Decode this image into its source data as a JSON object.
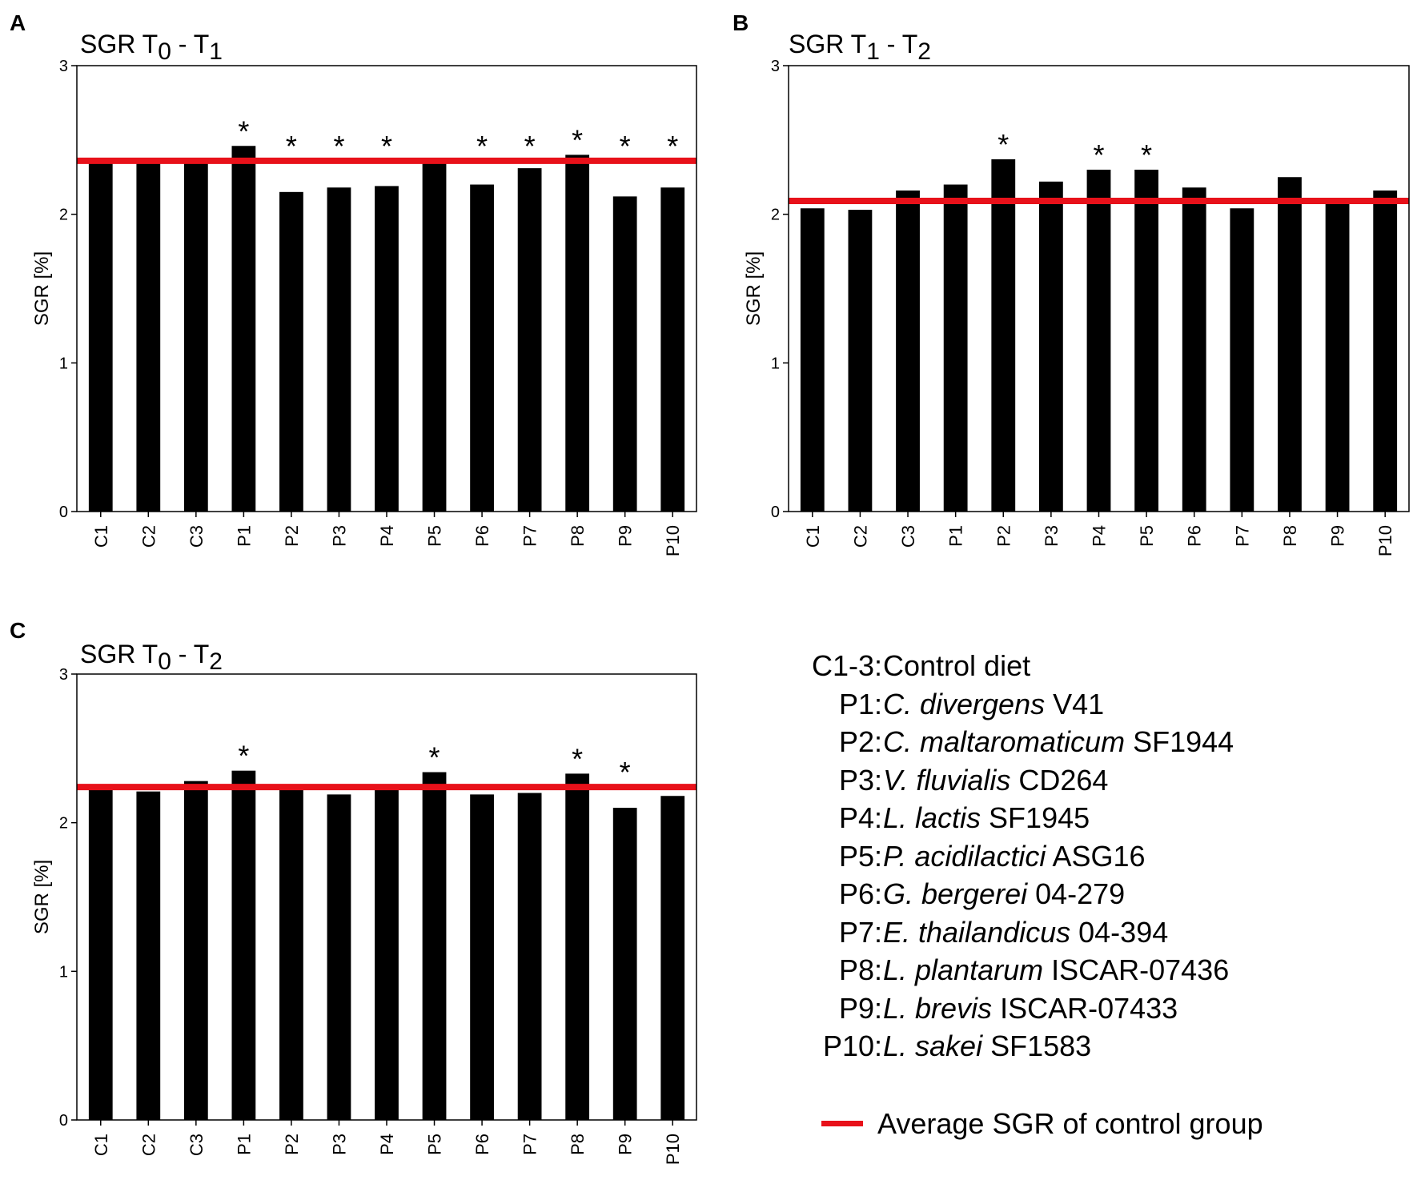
{
  "chart_data": [
    {
      "type": "bar",
      "panel_label": "A",
      "title": "SGR T",
      "title_sub_1": "0",
      "title_sep": " - T",
      "title_sub_2": "1",
      "ylabel": "SGR [%]",
      "xlabel": "",
      "ylim": [
        0,
        3
      ],
      "yticks": [
        "0",
        "1",
        "2",
        "3"
      ],
      "categories": [
        "C1",
        "C2",
        "C3",
        "P1",
        "P2",
        "P3",
        "P4",
        "P5",
        "P6",
        "P7",
        "P8",
        "P9",
        "P10"
      ],
      "values": [
        2.35,
        2.34,
        2.37,
        2.46,
        2.15,
        2.18,
        2.19,
        2.36,
        2.2,
        2.31,
        2.4,
        2.12,
        2.18
      ],
      "significance": [
        "",
        "",
        "",
        "*",
        "*",
        "*",
        "*",
        "",
        "*",
        "*",
        "*",
        "*",
        "*"
      ],
      "reference_line": 2.36,
      "grid": false
    },
    {
      "type": "bar",
      "panel_label": "B",
      "title": "SGR T",
      "title_sub_1": "1",
      "title_sep": " - T",
      "title_sub_2": "2",
      "ylabel": "SGR [%]",
      "xlabel": "",
      "ylim": [
        0,
        3
      ],
      "yticks": [
        "0",
        "1",
        "2",
        "3"
      ],
      "categories": [
        "C1",
        "C2",
        "C3",
        "P1",
        "P2",
        "P3",
        "P4",
        "P5",
        "P6",
        "P7",
        "P8",
        "P9",
        "P10"
      ],
      "values": [
        2.04,
        2.03,
        2.16,
        2.2,
        2.37,
        2.22,
        2.3,
        2.3,
        2.18,
        2.04,
        2.25,
        2.08,
        2.16
      ],
      "significance": [
        "",
        "",
        "",
        "",
        "*",
        "",
        "*",
        "*",
        "",
        "",
        "",
        "",
        ""
      ],
      "reference_line": 2.09,
      "grid": false
    },
    {
      "type": "bar",
      "panel_label": "C",
      "title": "SGR T",
      "title_sub_1": "0",
      "title_sep": " - T",
      "title_sub_2": "2",
      "ylabel": "SGR [%]",
      "xlabel": "",
      "ylim": [
        0,
        3
      ],
      "yticks": [
        "0",
        "1",
        "2",
        "3"
      ],
      "categories": [
        "C1",
        "C2",
        "C3",
        "P1",
        "P2",
        "P3",
        "P4",
        "P5",
        "P6",
        "P7",
        "P8",
        "P9",
        "P10"
      ],
      "values": [
        2.22,
        2.21,
        2.28,
        2.35,
        2.24,
        2.19,
        2.24,
        2.34,
        2.19,
        2.2,
        2.33,
        2.1,
        2.18
      ],
      "significance": [
        "",
        "",
        "",
        "*",
        "",
        "",
        "",
        "*",
        "",
        "",
        "*",
        "*",
        ""
      ],
      "reference_line": 2.24,
      "grid": false
    }
  ],
  "legend": {
    "entries": [
      {
        "code": "C1-3:",
        "species": "",
        "desc": "Control diet"
      },
      {
        "code": "P1:",
        "species": "C. divergens",
        "desc": " V41"
      },
      {
        "code": "P2:",
        "species": "C. maltaromaticum",
        "desc": " SF1944"
      },
      {
        "code": "P3:",
        "species": "V. fluvialis",
        "desc": " CD264"
      },
      {
        "code": "P4:",
        "species": "L. lactis",
        "desc": " SF1945"
      },
      {
        "code": "P5:",
        "species": "P. acidilactici",
        "desc": " ASG16"
      },
      {
        "code": "P6:",
        "species": "G. bergerei",
        "desc": " 04-279"
      },
      {
        "code": "P7:",
        "species": "E. thailandicus",
        "desc": " 04-394"
      },
      {
        "code": "P8:",
        "species": "L. plantarum",
        "desc": " ISCAR-07436"
      },
      {
        "code": "P9:",
        "species": "L. brevis",
        "desc": " ISCAR-07433"
      },
      {
        "code": "P10:",
        "species": "L. sakei",
        "desc": " SF1583"
      }
    ],
    "average_line_label": "Average SGR of control group"
  },
  "colors": {
    "bar": "#000000",
    "reference_line": "#e8111a",
    "axis": "#000000"
  }
}
